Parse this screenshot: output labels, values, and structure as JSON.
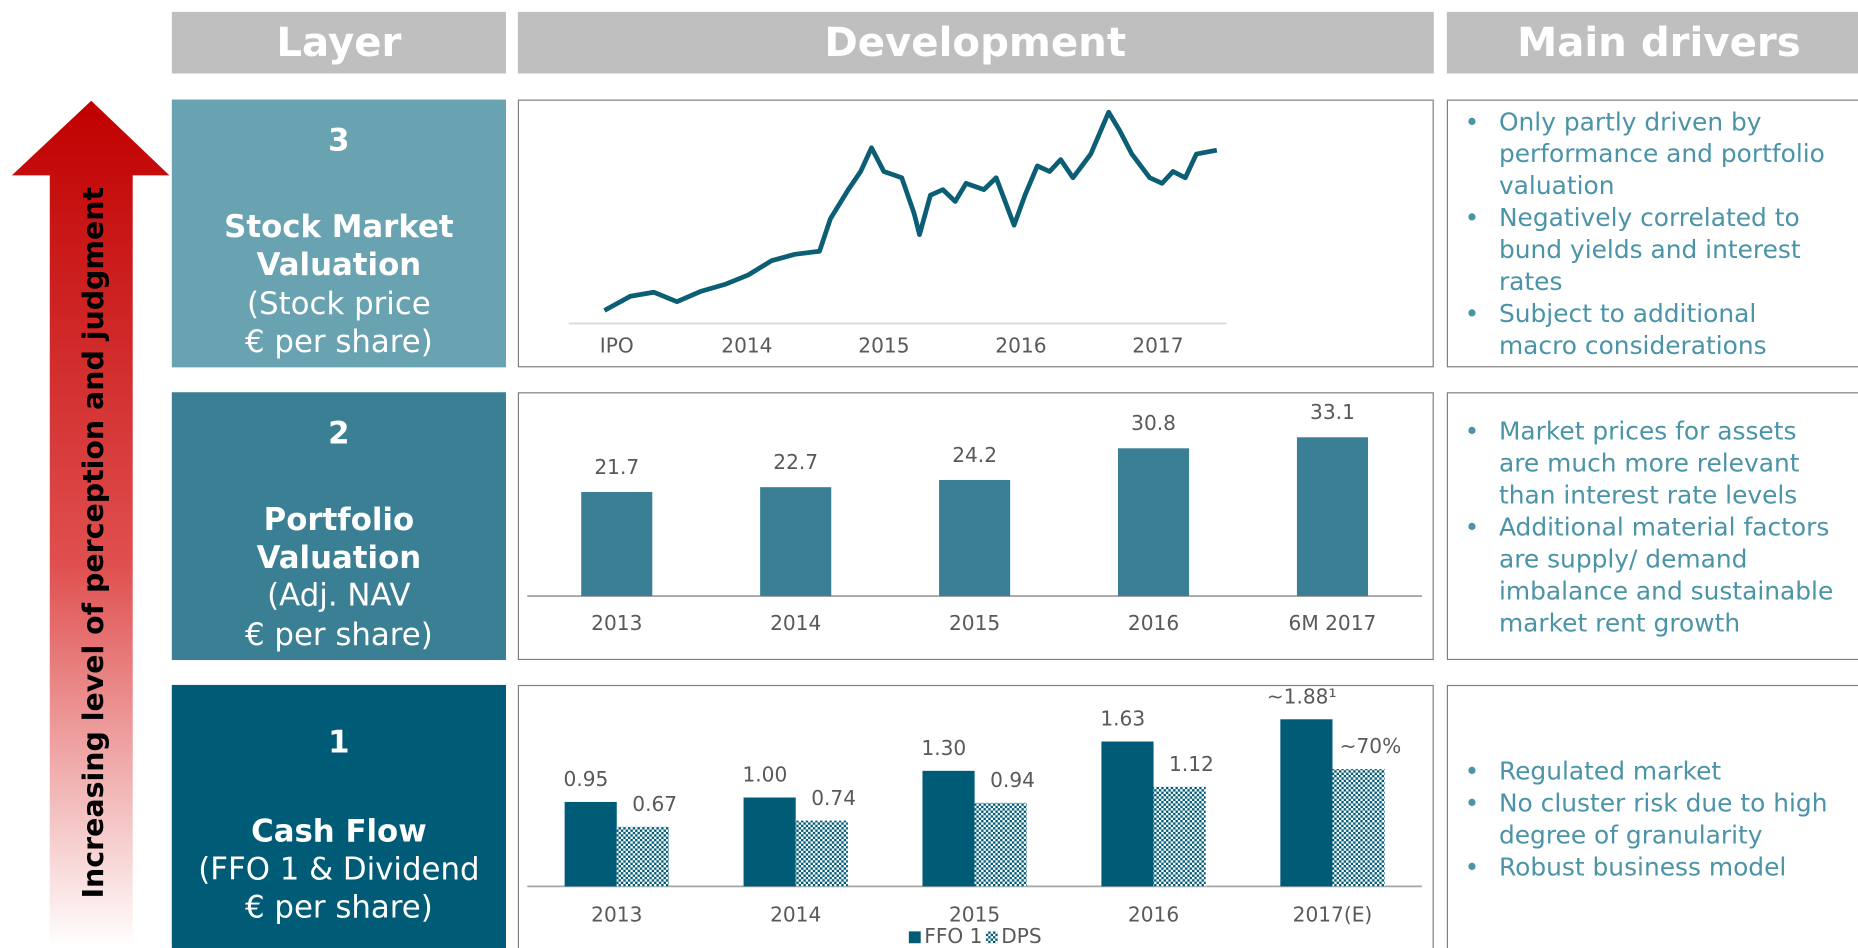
{
  "side_label": "Increasing level of perception and judgment",
  "header": {
    "columns": [
      "Layer",
      "Development",
      "Main drivers"
    ]
  },
  "layers": [
    {
      "number": "3",
      "title_lines": [
        "Stock Market",
        "Valuation"
      ],
      "subtitle_lines": [
        "(Stock price",
        "€ per share)"
      ]
    },
    {
      "number": "2",
      "title_lines": [
        "Portfolio",
        "Valuation"
      ],
      "subtitle_lines": [
        "(Adj. NAV",
        "€ per share)"
      ]
    },
    {
      "number": "1",
      "title_lines": [
        "Cash Flow"
      ],
      "subtitle_lines": [
        "(FFO 1 & Dividend",
        "€ per share)"
      ]
    }
  ],
  "drivers": [
    [
      [
        "Only partly driven by",
        "performance and portfolio",
        "valuation"
      ],
      [
        "Negatively correlated to",
        "bund yields and interest",
        "rates"
      ],
      [
        "Subject to additional",
        "macro considerations"
      ]
    ],
    [
      [
        "Market prices for assets",
        "are much more relevant",
        "than interest rate levels"
      ],
      [
        "Additional material factors",
        "are supply/ demand",
        "imbalance and sustainable",
        "market rent growth"
      ]
    ],
    [
      [
        "Regulated market"
      ],
      [
        "No cluster risk due to high",
        "degree of granularity"
      ],
      [
        "Robust business model"
      ]
    ]
  ],
  "chart_data": [
    {
      "type": "line",
      "color": "#0b5e74",
      "x": [
        2012.96,
        2013.15,
        2013.32,
        2013.49,
        2013.66,
        2013.84,
        2014.01,
        2014.18,
        2014.35,
        2014.53,
        2014.61,
        2014.74,
        2014.83,
        2014.91,
        2015.0,
        2015.13,
        2015.22,
        2015.26,
        2015.34,
        2015.43,
        2015.52,
        2015.6,
        2015.73,
        2015.82,
        2015.95,
        2016.03,
        2016.12,
        2016.21,
        2016.29,
        2016.38,
        2016.51,
        2016.64,
        2016.72,
        2016.81,
        2016.94,
        2017.03,
        2017.11,
        2017.2,
        2017.28,
        2017.43
      ],
      "values": [
        13.0,
        14.8,
        15.3,
        14.1,
        15.4,
        16.3,
        17.5,
        19.3,
        20.1,
        20.5,
        24.6,
        28.3,
        30.6,
        33.6,
        30.6,
        29.8,
        25.3,
        22.6,
        27.6,
        28.3,
        26.8,
        29.1,
        28.3,
        29.8,
        23.8,
        27.6,
        31.3,
        30.6,
        32.1,
        29.8,
        32.8,
        38.1,
        35.8,
        32.8,
        29.8,
        29.1,
        30.6,
        29.8,
        32.8,
        33.3
      ],
      "xlim": [
        2012.7,
        2017.5
      ],
      "ylim": [
        11,
        40
      ],
      "xticks": [
        {
          "value": 2013.05,
          "label": "IPO"
        },
        2014,
        2015,
        2016,
        2017
      ]
    },
    {
      "type": "bar",
      "color": "#3a7f93",
      "categories": [
        "2013",
        "2014",
        "2015",
        "2016",
        "6M 2017"
      ],
      "values": [
        21.7,
        22.7,
        24.2,
        30.8,
        33.1
      ],
      "ylim": [
        0,
        41.5
      ]
    },
    {
      "type": "bar",
      "categories": [
        "2013",
        "2014",
        "2015",
        "2016",
        "2017(E)"
      ],
      "series": [
        {
          "name": "FFO 1",
          "color": "#005b77",
          "values": [
            0.95,
            1.0,
            1.3,
            1.63,
            1.88
          ],
          "value_labels": [
            "0.95",
            "1.00",
            "1.30",
            "1.63",
            "~1.88¹"
          ]
        },
        {
          "name": "DPS",
          "color": "#005b77",
          "values": [
            0.67,
            0.74,
            0.94,
            1.12,
            1.32
          ],
          "value_labels": [
            "0.67",
            "0.74",
            "0.94",
            "1.12",
            null
          ]
        }
      ],
      "annotations": [
        "~70%"
      ],
      "ylim": [
        0,
        2.2
      ]
    }
  ]
}
